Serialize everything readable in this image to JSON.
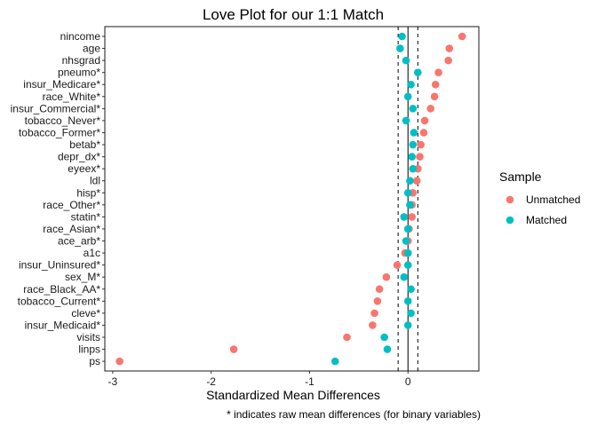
{
  "chart_data": {
    "type": "scatter",
    "title": "Love Plot for our 1:1 Match",
    "xlabel": "Standardized Mean Differences",
    "caption": "* indicates raw mean differences (for binary variables)",
    "xlim": [
      -3.08,
      0.72
    ],
    "xticks": [
      -3,
      -2,
      -1,
      0
    ],
    "reference_lines": {
      "solid": 0,
      "dashed": [
        -0.1,
        0.1
      ]
    },
    "legend": {
      "title": "Sample",
      "position": "right",
      "entries": [
        {
          "name": "Unmatched",
          "color": "#F8766D"
        },
        {
          "name": "Matched",
          "color": "#00BFC4"
        }
      ]
    },
    "grid": false,
    "categories": [
      "nincome",
      "age",
      "nhsgrad",
      "pneumo*",
      "insur_Medicare*",
      "race_White*",
      "insur_Commercial*",
      "tobacco_Never*",
      "tobacco_Former*",
      "betab*",
      "depr_dx*",
      "eyeex*",
      "ldl",
      "hisp*",
      "race_Other*",
      "statin*",
      "race_Asian*",
      "ace_arb*",
      "a1c",
      "insur_Uninsured*",
      "sex_M*",
      "race_Black_AA*",
      "tobacco_Current*",
      "cleve*",
      "insur_Medicaid*",
      "visits",
      "linps",
      "ps"
    ],
    "series": [
      {
        "name": "Unmatched",
        "color": "#F8766D",
        "values": [
          0.55,
          0.42,
          0.41,
          0.31,
          0.28,
          0.27,
          0.23,
          0.17,
          0.16,
          0.13,
          0.12,
          0.1,
          0.09,
          0.05,
          0.04,
          0.04,
          0.01,
          0.0,
          -0.03,
          -0.11,
          -0.22,
          -0.29,
          -0.31,
          -0.34,
          -0.36,
          -0.62,
          -1.77,
          -2.93
        ]
      },
      {
        "name": "Matched",
        "color": "#00BFC4",
        "values": [
          -0.06,
          -0.08,
          -0.02,
          0.1,
          0.03,
          0.0,
          0.05,
          -0.02,
          0.06,
          0.05,
          0.04,
          0.05,
          0.02,
          0.0,
          0.02,
          -0.04,
          0.0,
          -0.02,
          0.0,
          0.0,
          -0.04,
          0.03,
          0.0,
          0.03,
          0.0,
          -0.24,
          -0.21,
          -0.74
        ]
      }
    ]
  }
}
